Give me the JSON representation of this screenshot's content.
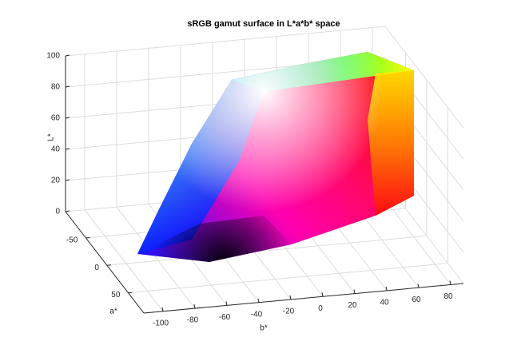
{
  "chart_data": {
    "type": "surface3d",
    "title": "sRGB gamut surface in L*a*b* space",
    "xlabel": "b*",
    "ylabel": "a*",
    "zlabel": "L*",
    "xlim": [
      -112,
      88
    ],
    "xticks": [
      -100,
      -80,
      -60,
      -40,
      -20,
      0,
      20,
      40,
      60,
      80
    ],
    "ylim": [
      -98,
      87
    ],
    "yticks": [
      -50,
      0,
      50
    ],
    "zlim": [
      0,
      100
    ],
    "zticks": [
      0,
      20,
      40,
      60,
      80,
      100
    ],
    "grid": true
  }
}
